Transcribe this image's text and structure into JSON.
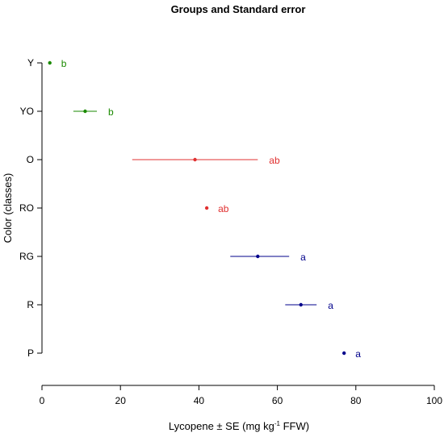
{
  "chart_data": {
    "type": "scatter",
    "title": "Groups and Standard error",
    "xlabel": {
      "before_sup": "Lycopene ± SE (mg kg",
      "sup": "-1",
      "after_sup": " FFW)"
    },
    "ylabel": "Color (classes)",
    "xlim": [
      0,
      100
    ],
    "xticks": [
      0,
      20,
      40,
      60,
      80,
      100
    ],
    "categories": [
      "Y",
      "YO",
      "O",
      "RO",
      "RG",
      "R",
      "P"
    ],
    "points": [
      {
        "category": "Y",
        "mean": 2,
        "low": 2,
        "high": 2,
        "group": "b",
        "color": "#1a8a00"
      },
      {
        "category": "YO",
        "mean": 11,
        "low": 8,
        "high": 14,
        "group": "b",
        "color": "#1a8a00"
      },
      {
        "category": "O",
        "mean": 39,
        "low": 23,
        "high": 55,
        "group": "ab",
        "color": "#e03030"
      },
      {
        "category": "RO",
        "mean": 42,
        "low": 42,
        "high": 42,
        "group": "ab",
        "color": "#e03030"
      },
      {
        "category": "RG",
        "mean": 55,
        "low": 48,
        "high": 63,
        "group": "a",
        "color": "#00008b"
      },
      {
        "category": "R",
        "mean": 66,
        "low": 62,
        "high": 70,
        "group": "a",
        "color": "#00008b"
      },
      {
        "category": "P",
        "mean": 77,
        "low": 77,
        "high": 77,
        "group": "a",
        "color": "#00008b"
      }
    ],
    "grid": false,
    "legend": "none"
  }
}
